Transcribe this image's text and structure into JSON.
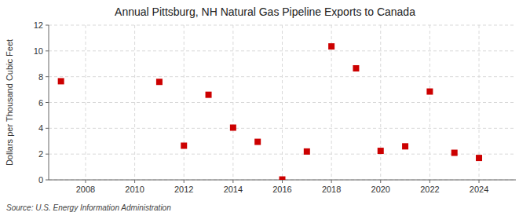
{
  "chart_data": {
    "type": "scatter",
    "title": "Annual Pittsburg, NH Natural Gas Pipeline Exports to Canada",
    "ylabel": "Dollars per Thousand Cubic Feet",
    "source": "Source: U.S. Energy Information Administration",
    "x": [
      2007,
      2011,
      2012,
      2013,
      2014,
      2015,
      2016,
      2017,
      2018,
      2019,
      2020,
      2021,
      2022,
      2023,
      2024
    ],
    "values": [
      7.65,
      7.6,
      2.65,
      6.6,
      4.05,
      2.95,
      0.03,
      2.2,
      10.35,
      8.65,
      2.25,
      2.6,
      6.85,
      2.1,
      1.7
    ],
    "color": "#cc0000",
    "marker": "square",
    "xlim": [
      2006.5,
      2025.5
    ],
    "ylim": [
      0,
      12
    ],
    "xticks": [
      2008,
      2010,
      2012,
      2014,
      2016,
      2018,
      2020,
      2022,
      2024
    ],
    "yticks": [
      0,
      2,
      4,
      6,
      8,
      10,
      12
    ],
    "grid": true
  }
}
